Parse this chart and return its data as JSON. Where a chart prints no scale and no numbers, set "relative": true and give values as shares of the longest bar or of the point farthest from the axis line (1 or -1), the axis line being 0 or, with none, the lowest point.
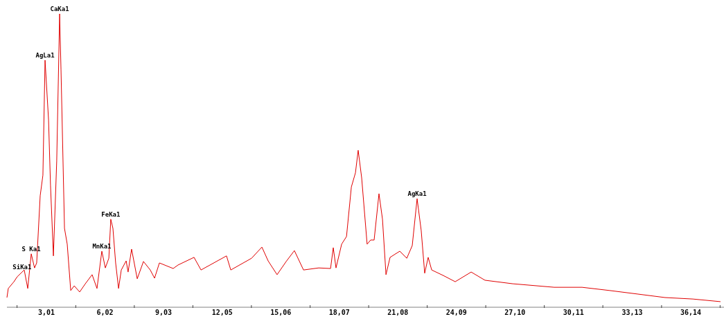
{
  "chart_data": {
    "type": "line",
    "relative": true,
    "xlim": [
      0.98,
      37.85
    ],
    "xticks": [
      {
        "value": 1.5,
        "label": null
      },
      {
        "value": 3.01,
        "label": "3,01"
      },
      {
        "value": 4.52,
        "label": null
      },
      {
        "value": 6.02,
        "label": "6,02"
      },
      {
        "value": 7.53,
        "label": null
      },
      {
        "value": 9.03,
        "label": "9,03"
      },
      {
        "value": 10.54,
        "label": null
      },
      {
        "value": 12.05,
        "label": "12,05"
      },
      {
        "value": 13.55,
        "label": null
      },
      {
        "value": 15.06,
        "label": "15,06"
      },
      {
        "value": 16.57,
        "label": null
      },
      {
        "value": 18.07,
        "label": "18,07"
      },
      {
        "value": 19.58,
        "label": null
      },
      {
        "value": 21.08,
        "label": "21,08"
      },
      {
        "value": 22.59,
        "label": null
      },
      {
        "value": 24.09,
        "label": "24,09"
      },
      {
        "value": 25.6,
        "label": null
      },
      {
        "value": 27.1,
        "label": "27,10"
      },
      {
        "value": 28.61,
        "label": null
      },
      {
        "value": 30.11,
        "label": "30,11"
      },
      {
        "value": 31.62,
        "label": null
      },
      {
        "value": 33.13,
        "label": "33,13"
      },
      {
        "value": 34.64,
        "label": null
      },
      {
        "value": 36.14,
        "label": "36,14"
      },
      {
        "value": 37.65,
        "label": null
      }
    ],
    "series": [
      {
        "color": "#e00000",
        "x": [
          0.98,
          1.05,
          1.34,
          1.51,
          1.76,
          1.87,
          2.05,
          2.23,
          2.4,
          2.51,
          2.69,
          2.83,
          2.94,
          3.12,
          3.22,
          3.37,
          3.54,
          3.69,
          3.76,
          3.94,
          4.08,
          4.26,
          4.44,
          4.72,
          5.01,
          5.36,
          5.61,
          5.86,
          6.04,
          6.22,
          6.32,
          6.43,
          6.57,
          6.72,
          6.86,
          7.11,
          7.21,
          7.39,
          7.68,
          8.0,
          8.35,
          8.57,
          8.82,
          9.53,
          9.78,
          10.6,
          10.96,
          12.27,
          12.49,
          13.56,
          14.09,
          14.41,
          14.87,
          15.34,
          15.76,
          16.23,
          17.01,
          17.62,
          17.76,
          17.9,
          18.19,
          18.44,
          18.69,
          18.9,
          19.04,
          19.22,
          19.5,
          19.68,
          19.86,
          20.11,
          20.29,
          20.47,
          20.68,
          21.18,
          21.54,
          21.82,
          22.07,
          22.28,
          22.46,
          22.64,
          22.82,
          23.42,
          24.03,
          24.85,
          25.56,
          26.99,
          29.12,
          30.55,
          31.97,
          33.4,
          34.82,
          36.25,
          37.67
        ],
        "values": [
          0.033,
          0.064,
          0.087,
          0.104,
          0.12,
          0.127,
          0.064,
          0.182,
          0.134,
          0.151,
          0.38,
          0.45,
          0.842,
          0.639,
          0.417,
          0.175,
          0.498,
          1,
          0.811,
          0.269,
          0.215,
          0.057,
          0.073,
          0.052,
          0.08,
          0.111,
          0.064,
          0.191,
          0.134,
          0.167,
          0.3,
          0.269,
          0.151,
          0.064,
          0.127,
          0.158,
          0.12,
          0.198,
          0.097,
          0.156,
          0.127,
          0.099,
          0.151,
          0.132,
          0.144,
          0.17,
          0.127,
          0.175,
          0.127,
          0.167,
          0.205,
          0.158,
          0.111,
          0.156,
          0.193,
          0.127,
          0.134,
          0.132,
          0.203,
          0.134,
          0.215,
          0.241,
          0.41,
          0.458,
          0.535,
          0.441,
          0.215,
          0.229,
          0.229,
          0.387,
          0.3,
          0.111,
          0.17,
          0.191,
          0.167,
          0.21,
          0.37,
          0.262,
          0.116,
          0.17,
          0.127,
          0.108,
          0.087,
          0.12,
          0.092,
          0.08,
          0.068,
          0.068,
          0.057,
          0.045,
          0.033,
          0.028,
          0.019
        ]
      }
    ],
    "annotations": [
      {
        "text": "SiKa1",
        "x": 1.76,
        "y": 0.12
      },
      {
        "text": "S Ka1",
        "x": 2.23,
        "y": 0.182
      },
      {
        "text": "AgLa1",
        "x": 2.94,
        "y": 0.842
      },
      {
        "text": "CaKa1",
        "x": 3.69,
        "y": 1
      },
      {
        "text": "MnKa1",
        "x": 5.86,
        "y": 0.191
      },
      {
        "text": "FeKa1",
        "x": 6.32,
        "y": 0.3
      },
      {
        "text": "AgKa1",
        "x": 22.07,
        "y": 0.37
      }
    ]
  }
}
